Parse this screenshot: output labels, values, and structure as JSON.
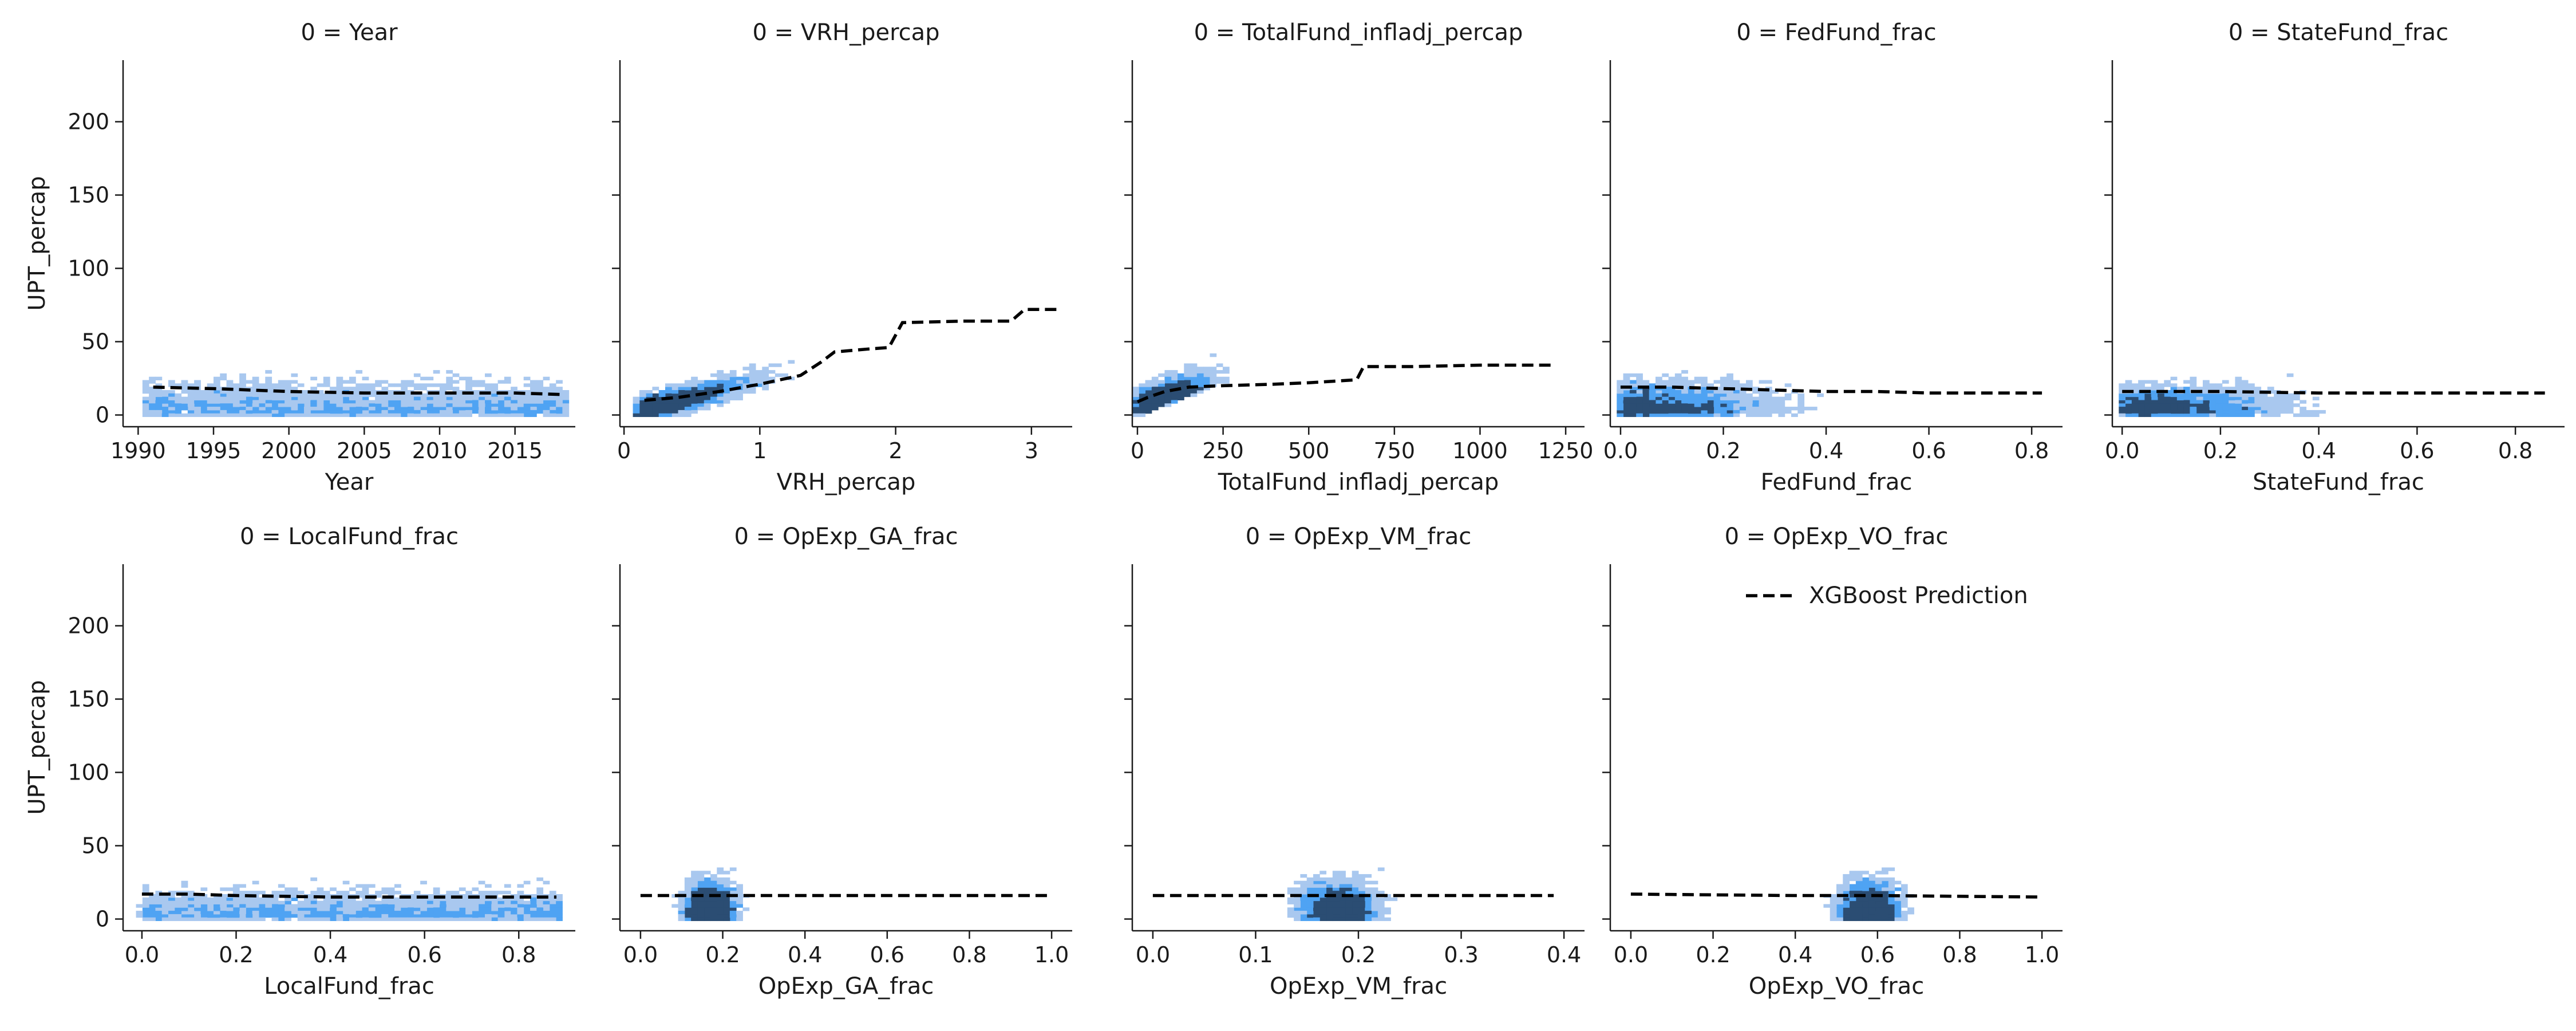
{
  "figure": {
    "legend": {
      "label": "XGBoost Prediction",
      "placement": "upper-right of 9th panel"
    },
    "colors": {
      "hist_light": "#a9c8ef",
      "hist_mid": "#4fa3f3",
      "hist_dark": "#2b4d73",
      "prediction_line": "#000000",
      "axis": "#1a1a1a"
    }
  },
  "chart_data": [
    {
      "type": "heatmap",
      "title": "0 = Year",
      "xlabel": "Year",
      "ylabel": "UPT_percap",
      "xlim": [
        1989,
        2019
      ],
      "ylim": [
        -8,
        242
      ],
      "xticks": [
        1990,
        1995,
        2000,
        2005,
        2010,
        2015
      ],
      "yticks": [
        0,
        50,
        100,
        150,
        200
      ],
      "series": [
        {
          "name": "XGBoost Prediction",
          "x": [
            1991,
            1995,
            2000,
            2005,
            2010,
            2015,
            2018
          ],
          "y": [
            19,
            18,
            16,
            15,
            15,
            15,
            14
          ]
        }
      ]
    },
    {
      "type": "heatmap",
      "title": "0 = VRH_percap",
      "xlabel": "VRH_percap",
      "ylabel": "",
      "xlim": [
        -0.03,
        3.3
      ],
      "ylim": [
        -8,
        242
      ],
      "xticks": [
        0,
        1,
        2,
        3
      ],
      "yticks": [
        0,
        50,
        100,
        150,
        200
      ],
      "series": [
        {
          "name": "XGBoost Prediction",
          "x": [
            0.15,
            0.4,
            0.7,
            1.0,
            1.3,
            1.45,
            1.55,
            1.8,
            1.95,
            2.05,
            2.5,
            2.85,
            2.95,
            3.2
          ],
          "y": [
            10,
            12,
            16,
            21,
            27,
            36,
            43,
            45,
            46,
            63,
            64,
            64,
            72,
            72
          ]
        }
      ]
    },
    {
      "type": "heatmap",
      "title": "0 = TotalFund_infladj_percap",
      "xlabel": "TotalFund_infladj_percap",
      "ylabel": "",
      "xlim": [
        -15,
        1305
      ],
      "ylim": [
        -8,
        242
      ],
      "xticks": [
        0,
        250,
        500,
        750,
        1000,
        1250
      ],
      "yticks": [
        0,
        50,
        100,
        150,
        200
      ],
      "series": [
        {
          "name": "XGBoost Prediction",
          "x": [
            0,
            30,
            80,
            150,
            250,
            400,
            500,
            640,
            660,
            800,
            1000,
            1220
          ],
          "y": [
            9,
            12,
            16,
            19,
            20,
            21,
            22,
            24,
            33,
            33,
            34,
            34
          ]
        }
      ]
    },
    {
      "type": "heatmap",
      "title": "0 = FedFund_frac",
      "xlabel": "FedFund_frac",
      "ylabel": "",
      "xlim": [
        -0.02,
        0.86
      ],
      "ylim": [
        -8,
        242
      ],
      "xticks": [
        0.0,
        0.2,
        0.4,
        0.6,
        0.8
      ],
      "yticks": [
        0,
        50,
        100,
        150,
        200
      ],
      "series": [
        {
          "name": "XGBoost Prediction",
          "x": [
            0.0,
            0.1,
            0.2,
            0.3,
            0.4,
            0.5,
            0.6,
            0.7,
            0.82
          ],
          "y": [
            19,
            19,
            18,
            17,
            16,
            16,
            15,
            15,
            15
          ]
        }
      ]
    },
    {
      "type": "heatmap",
      "title": "0 = StateFund_frac",
      "xlabel": "StateFund_frac",
      "ylabel": "",
      "xlim": [
        -0.02,
        0.9
      ],
      "ylim": [
        -8,
        242
      ],
      "xticks": [
        0.0,
        0.2,
        0.4,
        0.6,
        0.8
      ],
      "yticks": [
        0,
        50,
        100,
        150,
        200
      ],
      "series": [
        {
          "name": "XGBoost Prediction",
          "x": [
            0.0,
            0.2,
            0.4,
            0.6,
            0.86
          ],
          "y": [
            16,
            16,
            15,
            15,
            15
          ]
        }
      ]
    },
    {
      "type": "heatmap",
      "title": "0 = LocalFund_frac",
      "xlabel": "LocalFund_frac",
      "ylabel": "UPT_percap",
      "xlim": [
        -0.04,
        0.92
      ],
      "ylim": [
        -8,
        242
      ],
      "xticks": [
        0.0,
        0.2,
        0.4,
        0.6,
        0.8
      ],
      "yticks": [
        0,
        50,
        100,
        150,
        200
      ],
      "series": [
        {
          "name": "XGBoost Prediction",
          "x": [
            0.0,
            0.1,
            0.2,
            0.4,
            0.6,
            0.88
          ],
          "y": [
            17,
            17,
            16,
            15,
            15,
            15
          ]
        }
      ]
    },
    {
      "type": "heatmap",
      "title": "0 = OpExp_GA_frac",
      "xlabel": "OpExp_GA_frac",
      "ylabel": "",
      "xlim": [
        -0.05,
        1.05
      ],
      "ylim": [
        -8,
        242
      ],
      "xticks": [
        0.0,
        0.2,
        0.4,
        0.6,
        0.8,
        1.0
      ],
      "yticks": [
        0,
        50,
        100,
        150,
        200
      ],
      "series": [
        {
          "name": "XGBoost Prediction",
          "x": [
            0.0,
            0.2,
            0.5,
            1.0
          ],
          "y": [
            16,
            16,
            16,
            16
          ]
        }
      ]
    },
    {
      "type": "heatmap",
      "title": "0 = OpExp_VM_frac",
      "xlabel": "OpExp_VM_frac",
      "ylabel": "",
      "xlim": [
        -0.02,
        0.42
      ],
      "ylim": [
        -8,
        242
      ],
      "xticks": [
        0.0,
        0.1,
        0.2,
        0.3,
        0.4
      ],
      "yticks": [
        0,
        50,
        100,
        150,
        200
      ],
      "series": [
        {
          "name": "XGBoost Prediction",
          "x": [
            0.0,
            0.15,
            0.25,
            0.39
          ],
          "y": [
            16,
            16,
            16,
            16
          ]
        }
      ]
    },
    {
      "type": "heatmap",
      "title": "0 = OpExp_VO_frac",
      "xlabel": "OpExp_VO_frac",
      "ylabel": "",
      "xlim": [
        -0.05,
        1.05
      ],
      "ylim": [
        -8,
        242
      ],
      "xticks": [
        0.0,
        0.2,
        0.4,
        0.6,
        0.8,
        1.0
      ],
      "yticks": [
        0,
        50,
        100,
        150,
        200
      ],
      "series": [
        {
          "name": "XGBoost Prediction",
          "x": [
            0.0,
            0.4,
            0.6,
            1.0
          ],
          "y": [
            17,
            16,
            16,
            15
          ]
        }
      ]
    }
  ]
}
